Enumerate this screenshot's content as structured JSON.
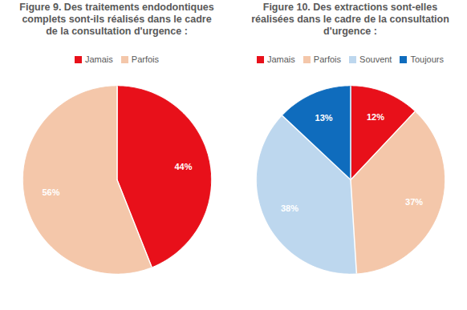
{
  "chart_data": [
    {
      "type": "pie",
      "title": "Figure 9. Des traitements endodontiques complets sont-ils réalisés dans le cadre de la consultation d'urgence :",
      "categories": [
        "Jamais",
        "Parfois"
      ],
      "values": [
        44,
        56
      ],
      "value_labels": [
        "44%",
        "56%"
      ],
      "colors": [
        "#e8101a",
        "#f4c7aa"
      ],
      "legend": "top",
      "data_labels": true
    },
    {
      "type": "pie",
      "title": "Figure 10. Des extractions sont-elles réalisées dans le cadre de la consultation d'urgence :",
      "categories": [
        "Jamais",
        "Parfois",
        "Souvent",
        "Toujours"
      ],
      "values": [
        12,
        37,
        38,
        13
      ],
      "value_labels": [
        "12%",
        "37%",
        "38%",
        "13%"
      ],
      "colors": [
        "#e8101a",
        "#f4c7aa",
        "#bdd7ee",
        "#0f6cbd"
      ],
      "legend": "top",
      "data_labels": true
    }
  ]
}
